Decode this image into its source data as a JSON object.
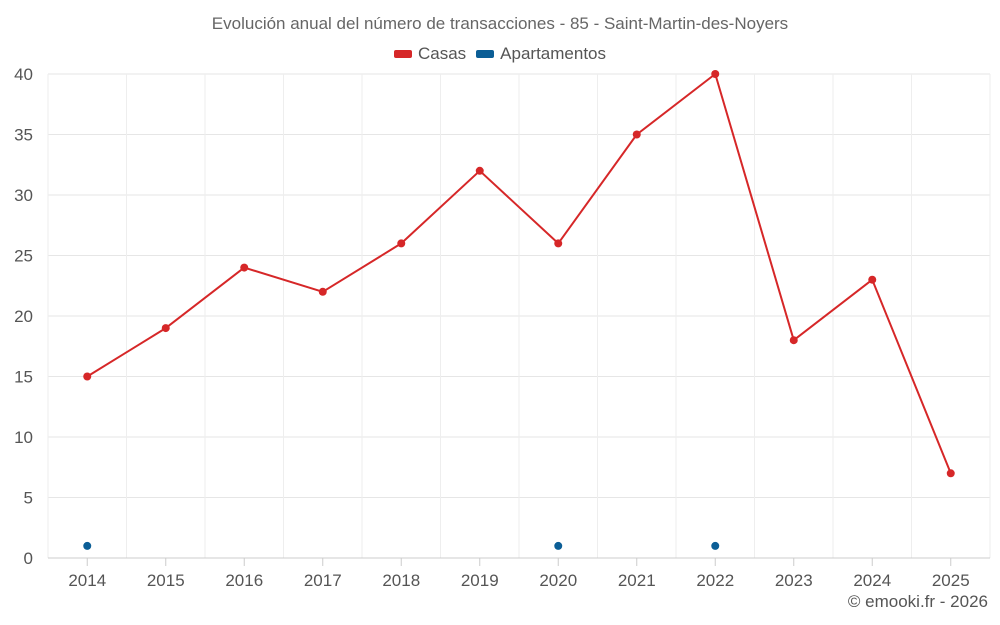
{
  "chart_data": {
    "type": "line",
    "title": "Evolución anual del número de transacciones - 85 - Saint-Martin-des-Noyers",
    "categories": [
      "2014",
      "2015",
      "2016",
      "2017",
      "2018",
      "2019",
      "2020",
      "2021",
      "2022",
      "2023",
      "2024",
      "2025"
    ],
    "ylim": [
      0,
      40
    ],
    "yticks": [
      0,
      5,
      10,
      15,
      20,
      25,
      30,
      35,
      40
    ],
    "grid": true,
    "legend_position": "top-center",
    "series": [
      {
        "name": "Casas",
        "color": "#d62728",
        "values": [
          15,
          19,
          24,
          22,
          26,
          32,
          26,
          35,
          40,
          18,
          23,
          7
        ]
      },
      {
        "name": "Apartamentos",
        "color": "#0b5e96",
        "values": [
          1,
          null,
          null,
          null,
          null,
          null,
          1,
          null,
          1,
          null,
          null,
          null
        ]
      }
    ]
  },
  "footer": {
    "credit": "© emooki.fr - 2026"
  }
}
